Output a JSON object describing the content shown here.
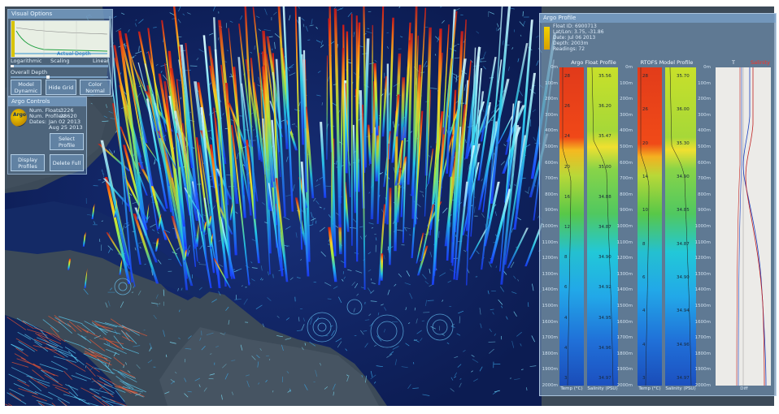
{
  "colors": {
    "ocean": "#10245a",
    "land": "#3c4a58",
    "panel": "#5a7896",
    "accent": "#f2d200",
    "salinity_red": "#e03020"
  },
  "view_options": {
    "title": "Visual Options",
    "chart_labels": {
      "legend_a": "Actual",
      "legend_b": "Depth"
    },
    "scale_labels": [
      "Logarithmic",
      "Scaling",
      "Linear"
    ],
    "overall_depth_label": "Overall Depth",
    "buttons": [
      "Model Dynamic",
      "Hide Grid",
      "Color Normal"
    ]
  },
  "argo_controls": {
    "title": "Argo Controls",
    "logo_text": "Argo",
    "rows": [
      {
        "label": "Num. Floats:",
        "value": "3226"
      },
      {
        "label": "Num. Profiles:",
        "value": "28620"
      },
      {
        "label": "Dates:",
        "value": "Jan 02 2013"
      },
      {
        "label": "",
        "value": "Aug 25 2013"
      }
    ],
    "buttons": [
      "Select Profile",
      "Display Profiles",
      "Delete Full"
    ]
  },
  "argo_profile": {
    "title": "Argo Profile",
    "info": [
      "Float ID: 6900713",
      "Lat/Lon: 3.75, -31.86",
      "Date: Jul 06 2013",
      "Depth: 2003m",
      "Readings: 72"
    ],
    "col_titles": [
      "Argo Float Profile",
      "RTOFS Model Profile"
    ],
    "legend_t": "T",
    "legend_s": "Salinity",
    "depth_ticks": [
      "0m",
      "100m",
      "200m",
      "300m",
      "400m",
      "500m",
      "600m",
      "700m",
      "800m",
      "900m",
      "1000m",
      "1100m",
      "1200m",
      "1300m",
      "1400m",
      "1500m",
      "1600m",
      "1700m",
      "1800m",
      "1900m",
      "2000m"
    ],
    "temp_marks": [
      "28",
      "26",
      "24",
      "20",
      "16",
      "12",
      "8",
      "6",
      "4",
      "4",
      "3"
    ],
    "sal_marks": [
      "35.56",
      "36.20",
      "35.47",
      "35.00",
      "34.88",
      "34.87",
      "34.90",
      "34.92",
      "34.95",
      "34.96",
      "34.97"
    ],
    "model_temp_marks": [
      "28",
      "26",
      "20",
      "14",
      "10",
      "8",
      "6",
      "4",
      "4",
      "3"
    ],
    "model_sal_marks": [
      "35.70",
      "36.00",
      "35.30",
      "34.90",
      "34.85",
      "34.87",
      "34.90",
      "34.94",
      "34.96",
      "34.97"
    ],
    "footer": [
      "Temp (°C)",
      "Salinity (PSU)",
      "Temp (°C)",
      "Salinity (PSU)",
      "Diff"
    ]
  }
}
